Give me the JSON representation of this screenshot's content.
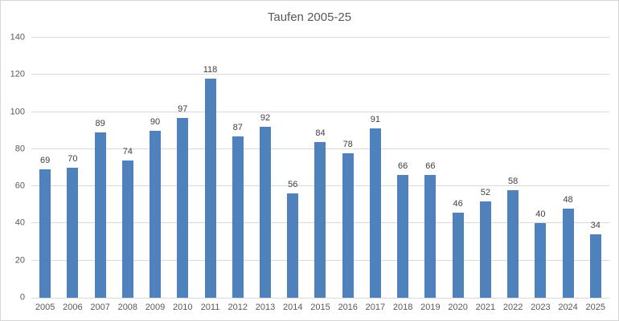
{
  "chart_data": {
    "type": "bar",
    "title": "Taufen 2005-25",
    "categories": [
      "2005",
      "2006",
      "2007",
      "2008",
      "2009",
      "2010",
      "2011",
      "2012",
      "2013",
      "2014",
      "2015",
      "2016",
      "2017",
      "2018",
      "2019",
      "2020",
      "2021",
      "2022",
      "2023",
      "2024",
      "2025"
    ],
    "values": [
      69,
      70,
      89,
      74,
      90,
      97,
      118,
      87,
      92,
      56,
      84,
      78,
      91,
      66,
      66,
      46,
      52,
      58,
      40,
      48,
      34
    ],
    "xlabel": "",
    "ylabel": "",
    "ylim": [
      0,
      140
    ],
    "yticks": [
      0,
      20,
      40,
      60,
      80,
      100,
      120,
      140
    ],
    "grid": true,
    "data_labels": true,
    "legend": "none",
    "colors": {
      "bar": "#4f81bd",
      "gridline": "#d9d9d9",
      "axis_text": "#595959",
      "data_label": "#404040",
      "title_text": "#595959",
      "frame_border": "#d6d6d6",
      "background": "#ffffff"
    }
  }
}
